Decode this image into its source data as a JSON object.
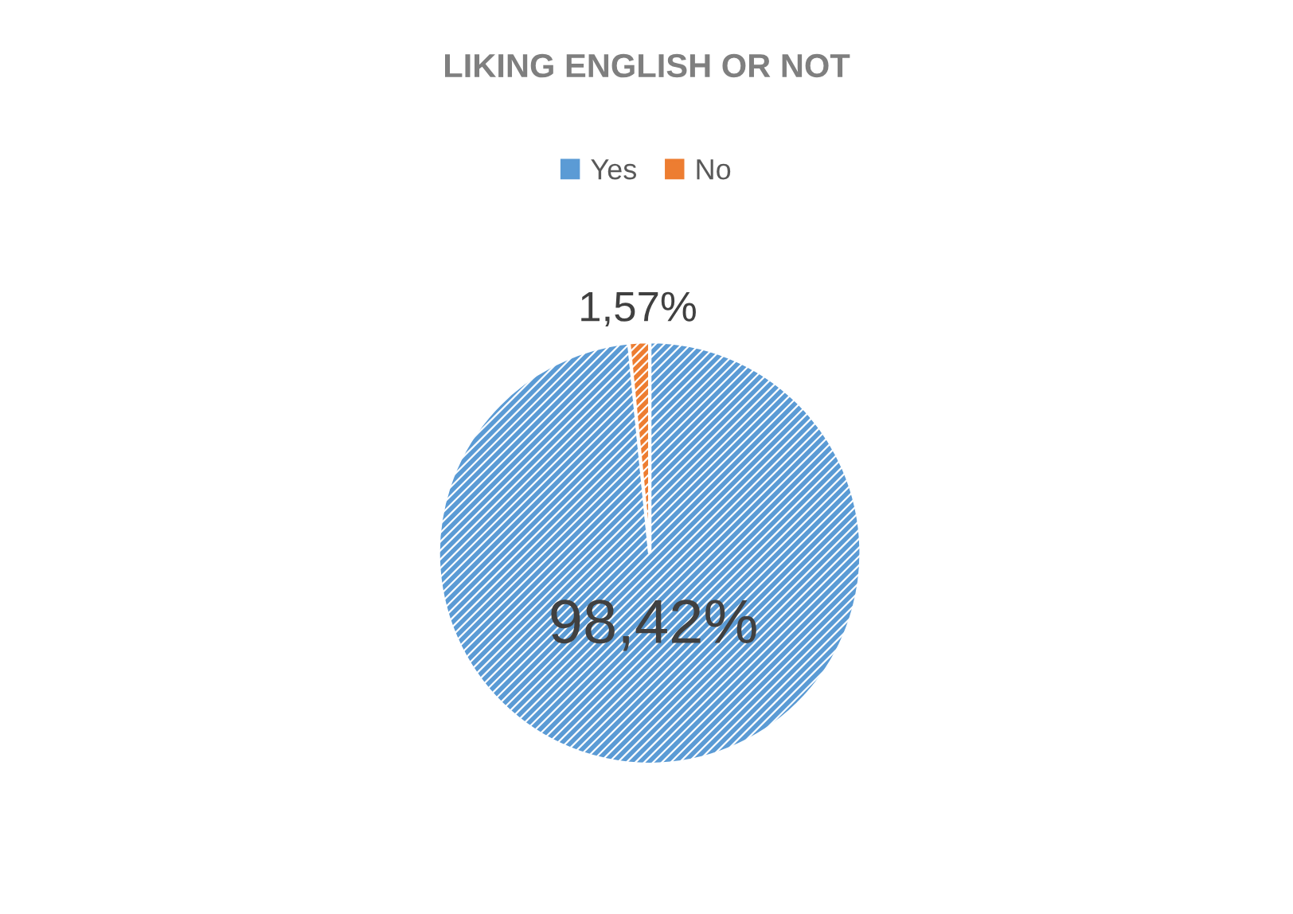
{
  "chart_data": {
    "type": "pie",
    "title": "LIKING ENGLISH OR NOT",
    "categories": [
      "Yes",
      "No"
    ],
    "values": [
      98.42,
      1.57
    ],
    "value_labels": [
      "98,42%",
      "1,57%"
    ],
    "colors": [
      "#5b9bd5",
      "#ed7d31"
    ],
    "legend": "top"
  }
}
